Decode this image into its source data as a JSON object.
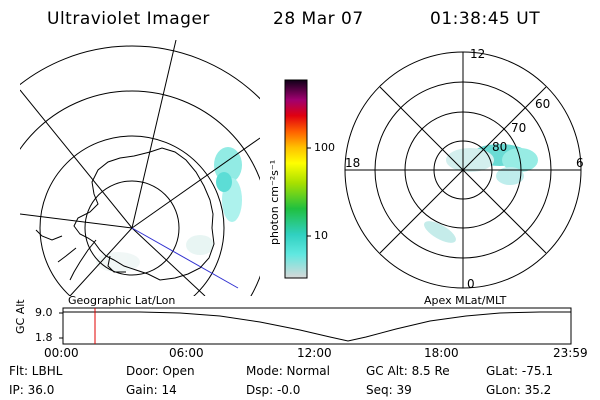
{
  "header": {
    "title": "Ultraviolet Imager",
    "date": "28 Mar 07",
    "time": "01:38:45 UT"
  },
  "left_map": {
    "caption": "Geographic Lat/Lon"
  },
  "right_map": {
    "caption": "Apex MLat/MLT",
    "mlt_labels": {
      "top": "12",
      "left": "18",
      "right": "6",
      "bottom": "0"
    },
    "lat_labels": [
      "60",
      "70",
      "80"
    ]
  },
  "colorbar": {
    "units": "photon cm⁻²s⁻¹",
    "ticks": [
      "100",
      "10"
    ],
    "colors": [
      "#d0d0d0",
      "#40e0d0",
      "#00c000",
      "#a0e000",
      "#ffff00",
      "#ffc000",
      "#ff7000",
      "#e00000",
      "#a00060",
      "#500060",
      "#000000"
    ]
  },
  "altitude_plot": {
    "ylabel": "GC Alt",
    "y_ticks": [
      "9.0",
      "1.8"
    ],
    "x_ticks": [
      "00:00",
      "06:00",
      "12:00",
      "18:00",
      "23:59"
    ],
    "current_marker_time": "01:38:45",
    "marker_color": "#e00000"
  },
  "info": {
    "flt": "Flt: LBHL",
    "ip": "IP: 36.0",
    "door": "Door: Open",
    "gain": "Gain: 14",
    "mode": "Mode: Normal",
    "dsp": "Dsp:   -0.0",
    "gc_alt": "GC Alt: 8.5 Re",
    "seq": "Seq: 39",
    "glat": "GLat:  -75.1",
    "glon": "GLon:  35.2"
  }
}
